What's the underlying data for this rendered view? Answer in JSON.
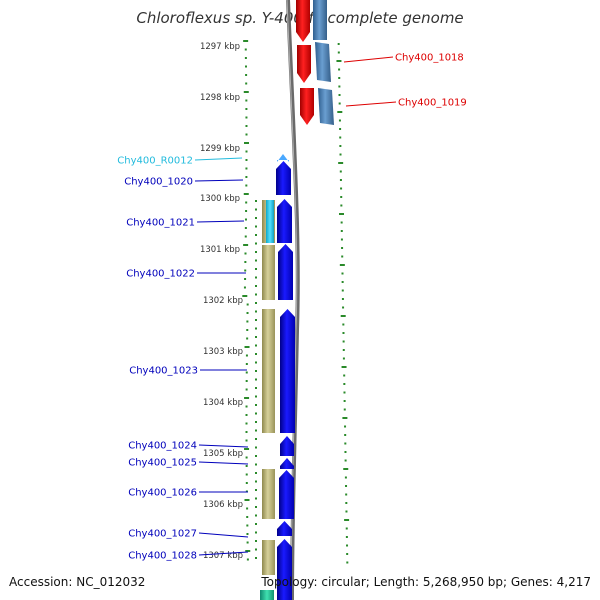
{
  "title": "Chloroflexus sp. Y-400-fl, complete genome",
  "ticks": [
    "1297 kbp",
    "1298 kbp",
    "1299 kbp",
    "1300 kbp",
    "1301 kbp",
    "1302 kbp",
    "1303 kbp",
    "1304 kbp",
    "1305 kbp",
    "1306 kbp",
    "1307 kbp"
  ],
  "gene_labels": [
    {
      "text": "Chy400_1018",
      "color": "#dd0000",
      "side": "right"
    },
    {
      "text": "Chy400_1019",
      "color": "#dd0000",
      "side": "right"
    },
    {
      "text": "Chy400_R0012",
      "color": "#22bbdd",
      "side": "left"
    },
    {
      "text": "Chy400_1020",
      "color": "#0000bb",
      "side": "left"
    },
    {
      "text": "Chy400_1021",
      "color": "#0000bb",
      "side": "left"
    },
    {
      "text": "Chy400_1022",
      "color": "#0000bb",
      "side": "left"
    },
    {
      "text": "Chy400_1023",
      "color": "#0000bb",
      "side": "left"
    },
    {
      "text": "Chy400_1024",
      "color": "#0000bb",
      "side": "left"
    },
    {
      "text": "Chy400_1025",
      "color": "#0000bb",
      "side": "left"
    },
    {
      "text": "Chy400_1026",
      "color": "#0000bb",
      "side": "left"
    },
    {
      "text": "Chy400_1027",
      "color": "#0000bb",
      "side": "left"
    },
    {
      "text": "Chy400_1028",
      "color": "#0000bb",
      "side": "left"
    }
  ],
  "footer": {
    "accession": "Accession: NC_012032",
    "summary": "Topology: circular; Length: 5,268,950 bp; Genes: 4,217"
  },
  "colors": {
    "forward_gene": "#0000ee",
    "reverse_gene": "#ee0000",
    "rna_gene": "#33ccee",
    "blue_reverse": "#4a82b8",
    "gc_band": "#bdb77a",
    "backbone": "#777777",
    "dots": "#2a8a2a"
  }
}
